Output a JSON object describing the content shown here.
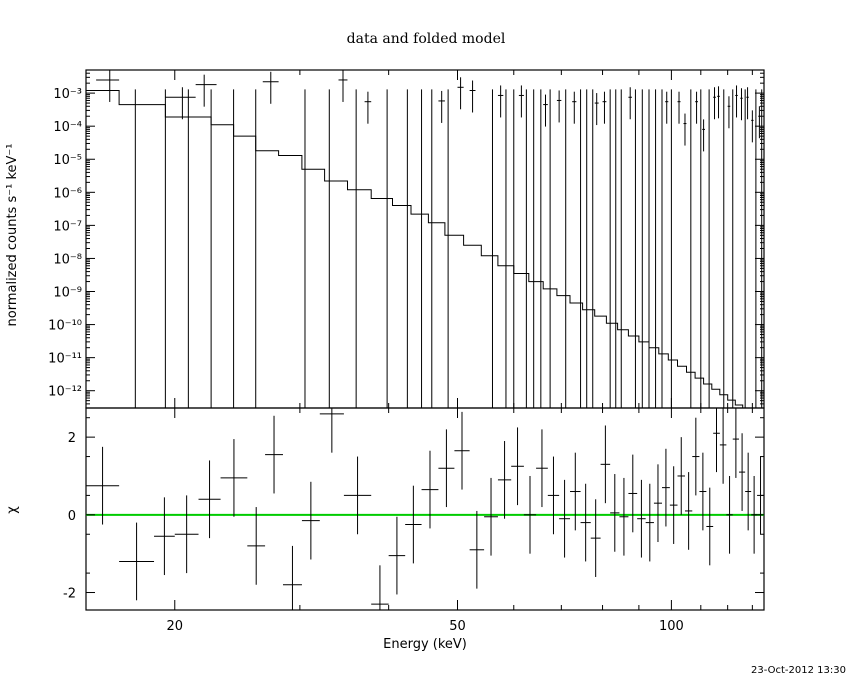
{
  "chart_data": [
    {
      "type": "line",
      "title": "data and folded model",
      "xlabel": "Energy (keV)",
      "ylabel": "normalized counts s⁻¹ keV⁻¹",
      "xscale": "log",
      "yscale": "log",
      "xlim": [
        15,
        135
      ],
      "ylim": [
        3e-13,
        0.005
      ],
      "grid": false,
      "y_tick_labels": [
        "10⁻³",
        "10⁻⁴",
        "10⁻⁵",
        "10⁻⁶",
        "10⁻⁷",
        "10⁻⁸",
        "10⁻⁹",
        "10⁻¹⁰",
        "10⁻¹¹",
        "10⁻¹²"
      ],
      "y_tick_values": [
        0.001,
        0.0001,
        1e-05,
        1e-06,
        1e-07,
        1e-08,
        1e-09,
        1e-10,
        1e-11,
        1e-12
      ],
      "model_edges": [
        15,
        15.5,
        16.7,
        18.0,
        19.4,
        20.9,
        22.5,
        24.2,
        26.0,
        28.0,
        30.2,
        32.5,
        35.0,
        37.8,
        40.5,
        43.0,
        45.5,
        48.0,
        51.0,
        54.0,
        57.0,
        60.0,
        63.0,
        66.0,
        69.0,
        72.0,
        75.0,
        78.0,
        81.0,
        84.0,
        87.0,
        90.0,
        93.0,
        96.0,
        99.0,
        102.0,
        105.0,
        108.0,
        111.0,
        114.0,
        117.0,
        120.0,
        123.0,
        126.0,
        129.0,
        132.0,
        135.0
      ],
      "model_values": [
        0.0012,
        0.0012,
        0.00045,
        0.00045,
        0.00019,
        0.00019,
        0.00011,
        5e-05,
        1.8e-05,
        1.3e-05,
        5e-06,
        2.2e-06,
        1.2e-06,
        6.5e-07,
        4e-07,
        2.2e-07,
        1.2e-07,
        5e-08,
        2.5e-08,
        1.2e-08,
        6e-09,
        3.5e-09,
        2e-09,
        1.2e-09,
        7.5e-10,
        4.5e-10,
        2.8e-10,
        1.8e-10,
        1.1e-10,
        7e-11,
        4.5e-11,
        3e-11,
        2e-11,
        1.3e-11,
        8.5e-12,
        5.5e-12,
        3.6e-12,
        2.4e-12,
        1.6e-12,
        1.1e-12,
        7.5e-13,
        5.2e-13,
        3.7e-13,
        2.8e-13,
        2.2e-13,
        1.8e-13
      ],
      "data_points": [
        {
          "x": 16.2,
          "xlo": 15.5,
          "xhi": 16.7,
          "y": 0.0025
        },
        {
          "x": 20.5,
          "xlo": 19.4,
          "xhi": 21.4,
          "y": 0.00075
        },
        {
          "x": 22.0,
          "xlo": 21.4,
          "xhi": 22.9,
          "y": 0.0018
        },
        {
          "x": 27.3,
          "xlo": 26.6,
          "xhi": 28.0,
          "y": 0.0022
        },
        {
          "x": 34.5,
          "xlo": 34.0,
          "xhi": 35.0,
          "y": 0.0025
        },
        {
          "x": 37.4,
          "xlo": 37.0,
          "xhi": 37.8,
          "y": 0.00055
        },
        {
          "x": 47.5,
          "xlo": 47.0,
          "xhi": 48.0,
          "y": 0.00058
        },
        {
          "x": 50.5,
          "xlo": 50.0,
          "xhi": 51.0,
          "y": 0.0015
        },
        {
          "x": 52.5,
          "xlo": 52.0,
          "xhi": 53.0,
          "y": 0.0012
        },
        {
          "x": 57.5,
          "xlo": 57.0,
          "xhi": 58.0,
          "y": 0.00085
        },
        {
          "x": 61.5,
          "xlo": 61.0,
          "xhi": 62.0,
          "y": 0.00085
        },
        {
          "x": 66.5,
          "xlo": 66.0,
          "xhi": 67.0,
          "y": 0.00045
        },
        {
          "x": 69.5,
          "xlo": 69.0,
          "xhi": 70.0,
          "y": 0.0006
        },
        {
          "x": 73.0,
          "xlo": 72.5,
          "xhi": 73.5,
          "y": 0.00055
        },
        {
          "x": 78.5,
          "xlo": 78.0,
          "xhi": 79.0,
          "y": 0.0005
        },
        {
          "x": 80.5,
          "xlo": 80.0,
          "xhi": 81.0,
          "y": 0.00055
        },
        {
          "x": 87.5,
          "xlo": 87.0,
          "xhi": 88.0,
          "y": 0.00075
        },
        {
          "x": 98.5,
          "xlo": 98.0,
          "xhi": 99.0,
          "y": 0.00055
        },
        {
          "x": 102.5,
          "xlo": 102.0,
          "xhi": 103.0,
          "y": 0.00055
        },
        {
          "x": 104.5,
          "xlo": 104.0,
          "xhi": 105.0,
          "y": 0.00012
        },
        {
          "x": 108.5,
          "xlo": 108.0,
          "xhi": 109.0,
          "y": 0.00055
        },
        {
          "x": 111.0,
          "xlo": 110.5,
          "xhi": 111.5,
          "y": 8e-05
        },
        {
          "x": 115.0,
          "xlo": 114.5,
          "xhi": 115.5,
          "y": 0.00075
        },
        {
          "x": 116.5,
          "xlo": 116.0,
          "xhi": 117.0,
          "y": 0.0008
        },
        {
          "x": 120.5,
          "xlo": 120.0,
          "xhi": 121.0,
          "y": 0.0004
        },
        {
          "x": 123.5,
          "xlo": 123.0,
          "xhi": 124.0,
          "y": 0.00085
        },
        {
          "x": 125.5,
          "xlo": 125.0,
          "xhi": 126.0,
          "y": 0.0007
        },
        {
          "x": 128.0,
          "xlo": 127.5,
          "xhi": 128.5,
          "y": 0.00075
        },
        {
          "x": 130.0,
          "xlo": 129.5,
          "xhi": 130.5,
          "y": 0.00015
        },
        {
          "x": 133.0,
          "xlo": 132.5,
          "xhi": 133.5,
          "y": 0.0002
        }
      ],
      "upper_limit_energies": [
        17.6,
        19.4,
        20.9,
        22.5,
        24.2,
        26.0,
        30.5,
        33.0,
        36.0,
        39.8,
        42.5,
        44.5,
        46.0,
        48.5,
        56.0,
        58.5,
        60.0,
        62.5,
        64.0,
        65.5,
        67.5,
        71.0,
        74.5,
        76.0,
        77.5,
        82.0,
        83.5,
        85.0,
        89.0,
        91.0,
        93.0,
        95.0,
        97.0,
        100.0,
        106.5,
        110.0,
        113.0,
        118.5,
        122.0,
        127.0,
        131.5,
        134.0
      ]
    },
    {
      "type": "scatter",
      "title": "",
      "xlabel": "Energy (keV)",
      "ylabel": "χ",
      "xscale": "log",
      "xlim": [
        15,
        135
      ],
      "ylim": [
        -2.45,
        2.75
      ],
      "x_tick_labels": [
        "20",
        "50",
        "100"
      ],
      "x_tick_values": [
        20,
        50,
        100
      ],
      "y_tick_labels": [
        "-2",
        "0",
        "2"
      ],
      "y_tick_values": [
        -2,
        0,
        2
      ],
      "zero_line_color": "#00cc00",
      "residuals": [
        {
          "xlo": 15.0,
          "xhi": 16.7,
          "y": 0.75
        },
        {
          "xlo": 16.7,
          "xhi": 18.7,
          "y": -1.2
        },
        {
          "xlo": 18.7,
          "xhi": 20.0,
          "y": -0.55
        },
        {
          "xlo": 20.0,
          "xhi": 21.6,
          "y": -0.5
        },
        {
          "xlo": 21.6,
          "xhi": 23.2,
          "y": 0.4
        },
        {
          "xlo": 23.2,
          "xhi": 25.3,
          "y": 0.95
        },
        {
          "xlo": 25.3,
          "xhi": 26.8,
          "y": -0.8
        },
        {
          "xlo": 26.8,
          "xhi": 28.4,
          "y": 1.55
        },
        {
          "xlo": 28.4,
          "xhi": 30.2,
          "y": -1.8
        },
        {
          "xlo": 30.2,
          "xhi": 32.0,
          "y": -0.15
        },
        {
          "xlo": 32.0,
          "xhi": 34.6,
          "y": 2.6
        },
        {
          "xlo": 34.6,
          "xhi": 37.8,
          "y": 0.5
        },
        {
          "xlo": 37.8,
          "xhi": 40.0,
          "y": -2.3
        },
        {
          "xlo": 40.0,
          "xhi": 42.2,
          "y": -1.05
        },
        {
          "xlo": 42.2,
          "xhi": 44.5,
          "y": -0.25
        },
        {
          "xlo": 44.5,
          "xhi": 47.0,
          "y": 0.65
        },
        {
          "xlo": 47.0,
          "xhi": 49.5,
          "y": 1.2
        },
        {
          "xlo": 49.5,
          "xhi": 52.0,
          "y": 1.65
        },
        {
          "xlo": 52.0,
          "xhi": 54.5,
          "y": -0.9
        },
        {
          "xlo": 54.5,
          "xhi": 57.0,
          "y": -0.05
        },
        {
          "xlo": 57.0,
          "xhi": 59.5,
          "y": 0.9
        },
        {
          "xlo": 59.5,
          "xhi": 62.0,
          "y": 1.25
        },
        {
          "xlo": 62.0,
          "xhi": 64.5,
          "y": 0.0
        },
        {
          "xlo": 64.5,
          "xhi": 67.0,
          "y": 1.2
        },
        {
          "xlo": 67.0,
          "xhi": 69.5,
          "y": 0.5
        },
        {
          "xlo": 69.5,
          "xhi": 72.0,
          "y": -0.1
        },
        {
          "xlo": 72.0,
          "xhi": 74.5,
          "y": 0.6
        },
        {
          "xlo": 74.5,
          "xhi": 77.0,
          "y": -0.2
        },
        {
          "xlo": 77.0,
          "xhi": 79.5,
          "y": -0.6
        },
        {
          "xlo": 79.5,
          "xhi": 82.0,
          "y": 1.3
        },
        {
          "xlo": 82.0,
          "xhi": 84.5,
          "y": 0.05
        },
        {
          "xlo": 84.5,
          "xhi": 87.0,
          "y": -0.05
        },
        {
          "xlo": 87.0,
          "xhi": 89.5,
          "y": 0.55
        },
        {
          "xlo": 89.5,
          "xhi": 92.0,
          "y": -0.1
        },
        {
          "xlo": 92.0,
          "xhi": 94.5,
          "y": -0.2
        },
        {
          "xlo": 94.5,
          "xhi": 97.0,
          "y": 0.3
        },
        {
          "xlo": 97.0,
          "xhi": 99.5,
          "y": 0.7
        },
        {
          "xlo": 99.5,
          "xhi": 102.0,
          "y": 0.25
        },
        {
          "xlo": 102.0,
          "xhi": 104.5,
          "y": 1.0
        },
        {
          "xlo": 104.5,
          "xhi": 107.0,
          "y": 0.1
        },
        {
          "xlo": 107.0,
          "xhi": 109.5,
          "y": 1.5
        },
        {
          "xlo": 109.5,
          "xhi": 112.0,
          "y": 0.6
        },
        {
          "xlo": 112.0,
          "xhi": 114.5,
          "y": -0.3
        },
        {
          "xlo": 114.5,
          "xhi": 117.0,
          "y": 2.1
        },
        {
          "xlo": 117.0,
          "xhi": 119.5,
          "y": 1.8
        },
        {
          "xlo": 119.5,
          "xhi": 122.0,
          "y": 0.0
        },
        {
          "xlo": 122.0,
          "xhi": 124.5,
          "y": 1.95
        },
        {
          "xlo": 124.5,
          "xhi": 127.0,
          "y": 1.1
        },
        {
          "xlo": 127.0,
          "xhi": 129.5,
          "y": 0.6
        },
        {
          "xlo": 129.5,
          "xhi": 132.0,
          "y": 0.0
        },
        {
          "xlo": 132.0,
          "xhi": 135.0,
          "y": 0.5
        }
      ]
    }
  ],
  "footer": {
    "timestamp": "23-Oct-2012 13:30"
  }
}
